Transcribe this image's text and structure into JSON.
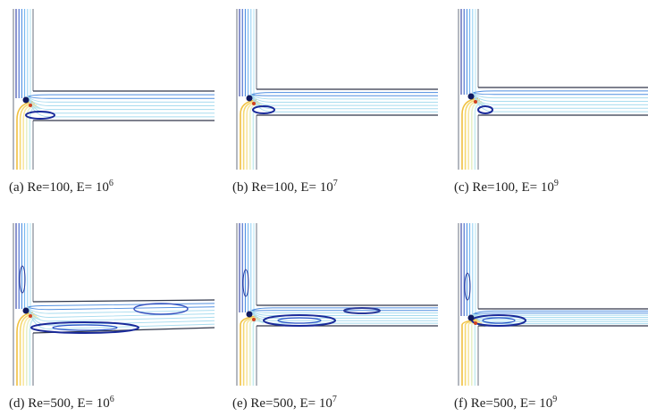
{
  "panels": [
    {
      "caption": "(a) Re=100, E= 10",
      "exponent": "6"
    },
    {
      "caption": "(b) Re=100, E= 10",
      "exponent": "7"
    },
    {
      "caption": "(c) Re=100, E= 10",
      "exponent": "9"
    },
    {
      "caption": "(d) Re=500, E= 10",
      "exponent": "6"
    },
    {
      "caption": "(e) Re=500, E= 10",
      "exponent": "7"
    },
    {
      "caption": "(f) Re=500, E= 10",
      "exponent": "9"
    }
  ]
}
